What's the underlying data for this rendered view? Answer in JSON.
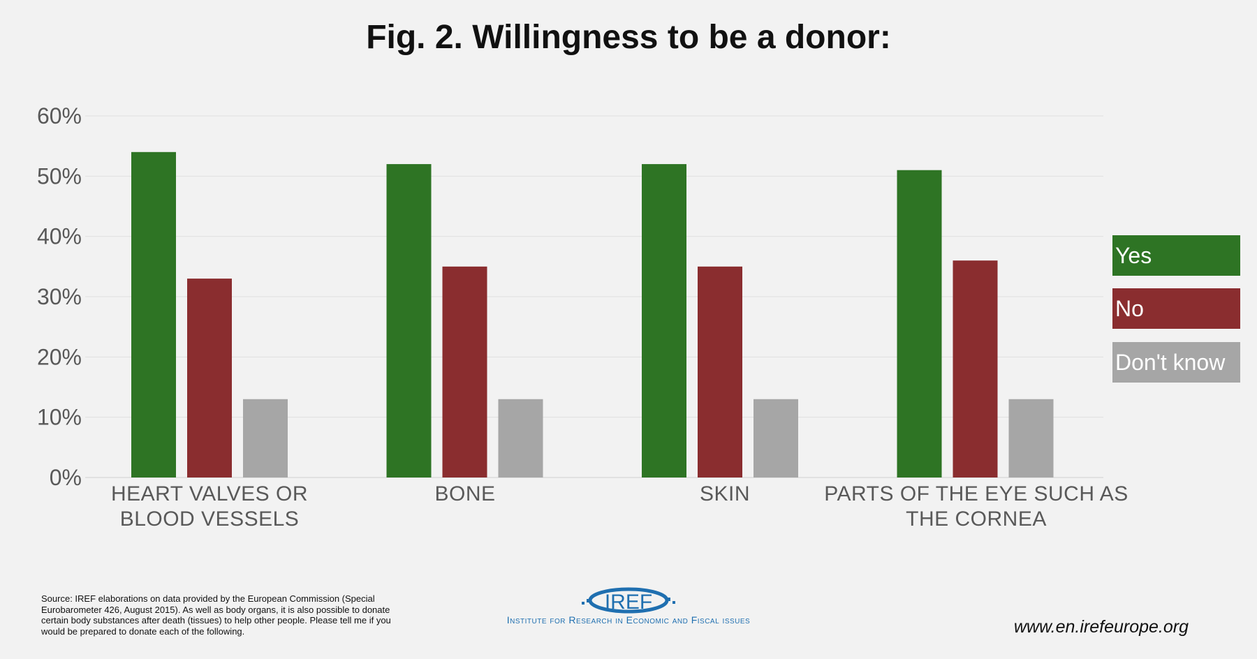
{
  "chart_data": {
    "type": "bar",
    "title": "Fig. 2. Willingness to be a donor:",
    "categories": [
      [
        "HEART VALVES OR",
        "BLOOD VESSELS"
      ],
      [
        "BONE"
      ],
      [
        "SKIN"
      ],
      [
        "PARTS OF THE EYE SUCH AS",
        "THE CORNEA"
      ]
    ],
    "series": [
      {
        "name": "Yes",
        "color": "#2e7424",
        "values": [
          54,
          52,
          52,
          51
        ]
      },
      {
        "name": "No",
        "color": "#8a2d2f",
        "values": [
          33,
          35,
          35,
          36
        ]
      },
      {
        "name": "Don't know",
        "color": "#a6a6a6",
        "values": [
          13,
          13,
          13,
          13
        ]
      }
    ],
    "yticks": [
      "0%",
      "10%",
      "20%",
      "30%",
      "40%",
      "50%",
      "60%"
    ],
    "ylim": [
      0,
      60
    ],
    "xlabel": "",
    "ylabel": "",
    "legend_position": "right"
  },
  "footer": {
    "source_note": "Source: IREF elaborations on data provided by the European Commission (Special Eurobarometer 426, August 2015). As well as body organs, it is also possible to donate certain body substances after death (tissues)  to help other people. Please tell me if you would be prepared to donate each of the following.",
    "logo_text": "IREF",
    "institute": "Institute for Research in Economic and Fiscal issues",
    "website": "www.en.irefeurope.org"
  }
}
